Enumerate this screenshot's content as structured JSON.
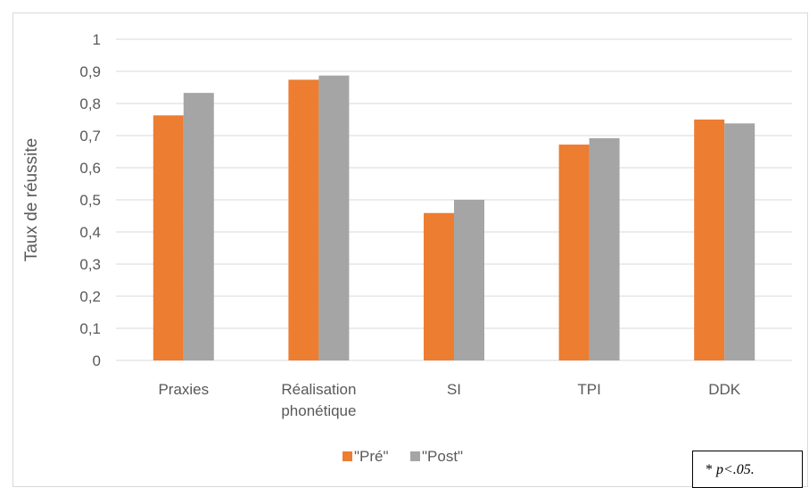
{
  "chart_data": {
    "type": "bar",
    "title": "",
    "xlabel": "",
    "ylabel": "Taux de réussite",
    "ylim": [
      0,
      1
    ],
    "yticks": [
      "0",
      "0,1",
      "0,2",
      "0,3",
      "0,4",
      "0,5",
      "0,6",
      "0,7",
      "0,8",
      "0,9",
      "1"
    ],
    "categories": [
      [
        "Praxies"
      ],
      [
        "Réalisation",
        "phonétique"
      ],
      [
        "SI"
      ],
      [
        "TPI"
      ],
      [
        "DDK"
      ]
    ],
    "series": [
      {
        "name": "\"Pré\"",
        "color": "#ED7D31",
        "values": [
          0.763,
          0.874,
          0.459,
          0.672,
          0.75
        ]
      },
      {
        "name": "\"Post\"",
        "color": "#A5A5A5",
        "values": [
          0.833,
          0.887,
          0.5,
          0.692,
          0.738
        ]
      }
    ],
    "grid": true,
    "legend_position": "bottom"
  },
  "note": {
    "prefix": "* ",
    "italic": "p<.05."
  }
}
